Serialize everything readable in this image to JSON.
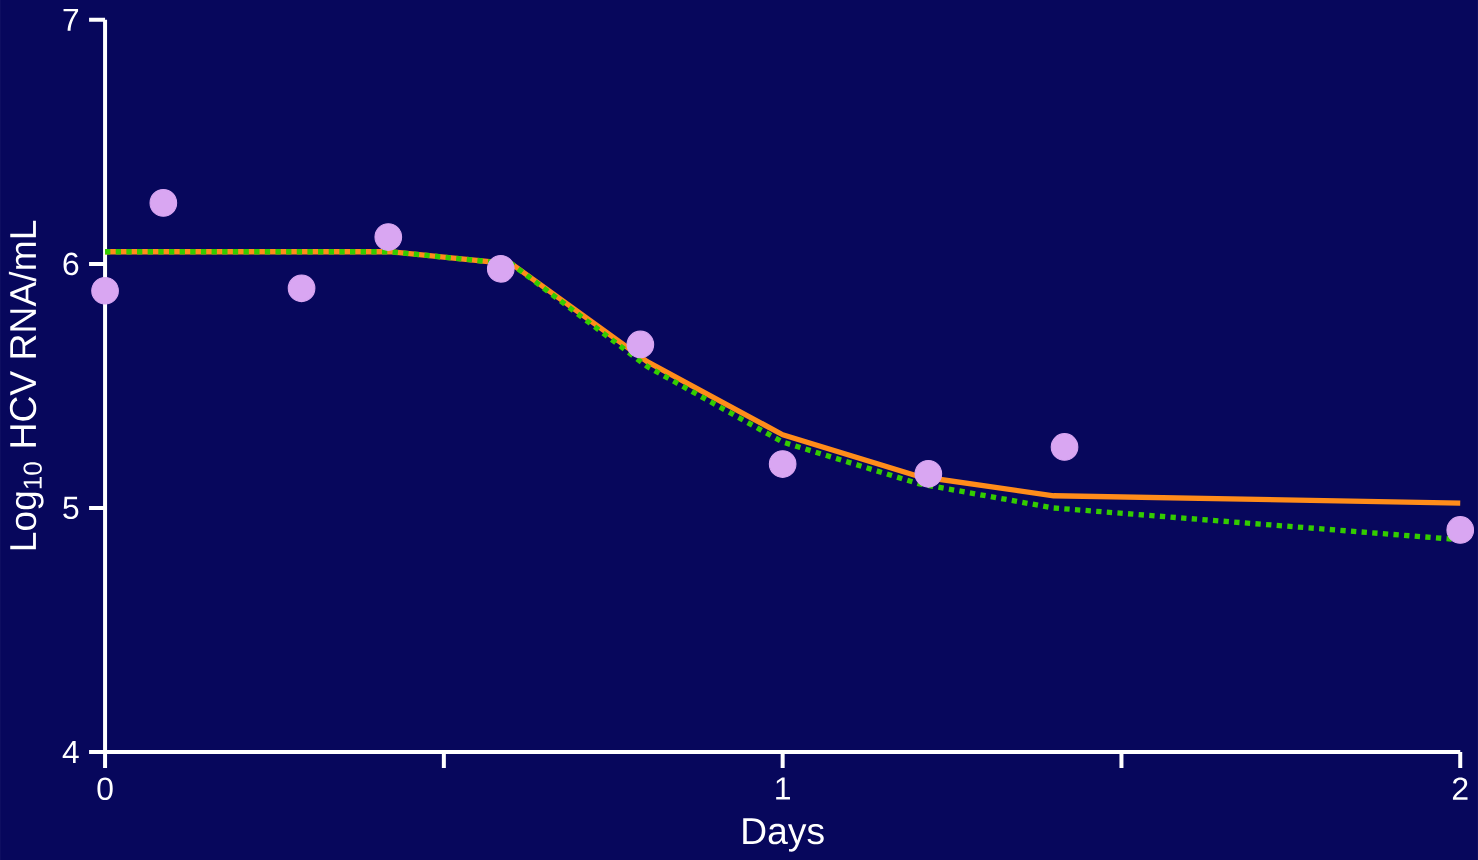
{
  "chart_data": {
    "type": "line",
    "xlabel": "Days",
    "ylabel": "Log$_{10}$ HCV RNA/mL",
    "xlim": [
      0,
      2
    ],
    "ylim": [
      4,
      7
    ],
    "xticks": [
      0,
      {
        "value": 0.5,
        "label": null
      },
      1,
      {
        "value": 1.5,
        "label": null
      },
      2
    ],
    "yticks": [
      4,
      5,
      6,
      7
    ],
    "grid": false,
    "series": [
      {
        "color": "#ff8c1a",
        "line_style": "solid",
        "marker": "none",
        "x": [
          0,
          0.42,
          0.6,
          0.8,
          1,
          1.2,
          1.4,
          2
        ],
        "values": [
          6.05,
          6.05,
          6.0,
          5.6,
          5.3,
          5.13,
          5.05,
          5.02
        ]
      },
      {
        "color": "#33cc00",
        "line_style": "dotted",
        "marker": "none",
        "x": [
          0,
          0.42,
          0.6,
          0.8,
          1,
          1.2,
          1.4,
          2
        ],
        "values": [
          6.05,
          6.05,
          6.0,
          5.58,
          5.27,
          5.1,
          5.0,
          4.87
        ]
      },
      {
        "type": "scatter",
        "color": "#d9a6f2",
        "marker": "circle",
        "x": [
          0,
          0.086,
          0.29,
          0.418,
          0.584,
          0.79,
          1.0,
          1.215,
          1.416,
          2
        ],
        "values": [
          5.89,
          6.25,
          5.9,
          6.11,
          5.98,
          5.67,
          5.18,
          5.14,
          5.25,
          4.91
        ]
      }
    ]
  }
}
